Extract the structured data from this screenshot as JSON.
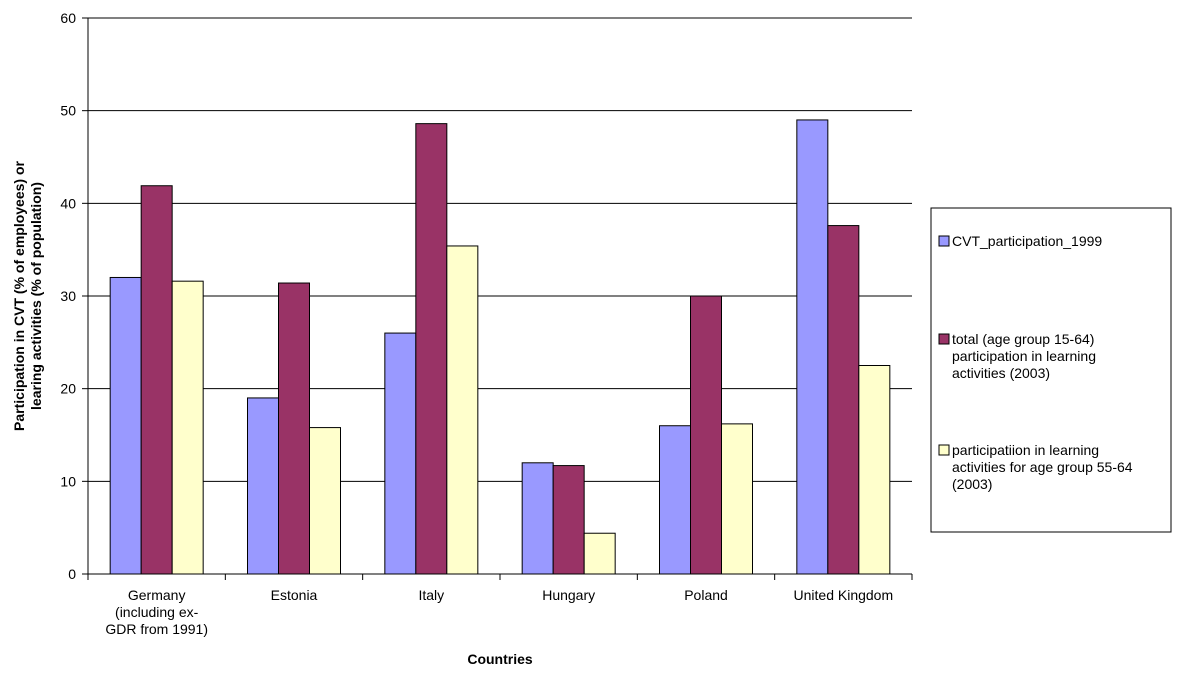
{
  "chart_data": {
    "type": "bar",
    "xlabel": "Countries",
    "ylabel_lines": [
      "Participation in CVT (% of employees) or",
      "learing activities (% of population)"
    ],
    "ylim": [
      0,
      60
    ],
    "yticks": [
      0,
      10,
      20,
      30,
      40,
      50,
      60
    ],
    "grid": true,
    "legend_position": "right",
    "categories": [
      [
        "Germany",
        "(including ex-",
        "GDR from 1991)"
      ],
      [
        "Estonia"
      ],
      [
        "Italy"
      ],
      [
        "Hungary"
      ],
      [
        "Poland"
      ],
      [
        "United Kingdom"
      ]
    ],
    "series": [
      {
        "name_lines": [
          "CVT_participation_1999"
        ],
        "color": "#9999FF",
        "values": [
          32,
          19,
          26,
          12,
          16,
          49
        ]
      },
      {
        "name_lines": [
          "total (age group 15-64)",
          "participation in learning",
          "activities (2003)"
        ],
        "color": "#993366",
        "values": [
          41.9,
          31.4,
          48.6,
          11.7,
          30,
          37.6
        ]
      },
      {
        "name_lines": [
          "participatiion in learning",
          "activities for age group 55-64",
          "(2003)"
        ],
        "color": "#FFFFCC",
        "values": [
          31.6,
          15.8,
          35.4,
          4.4,
          16.2,
          22.5
        ]
      }
    ]
  }
}
